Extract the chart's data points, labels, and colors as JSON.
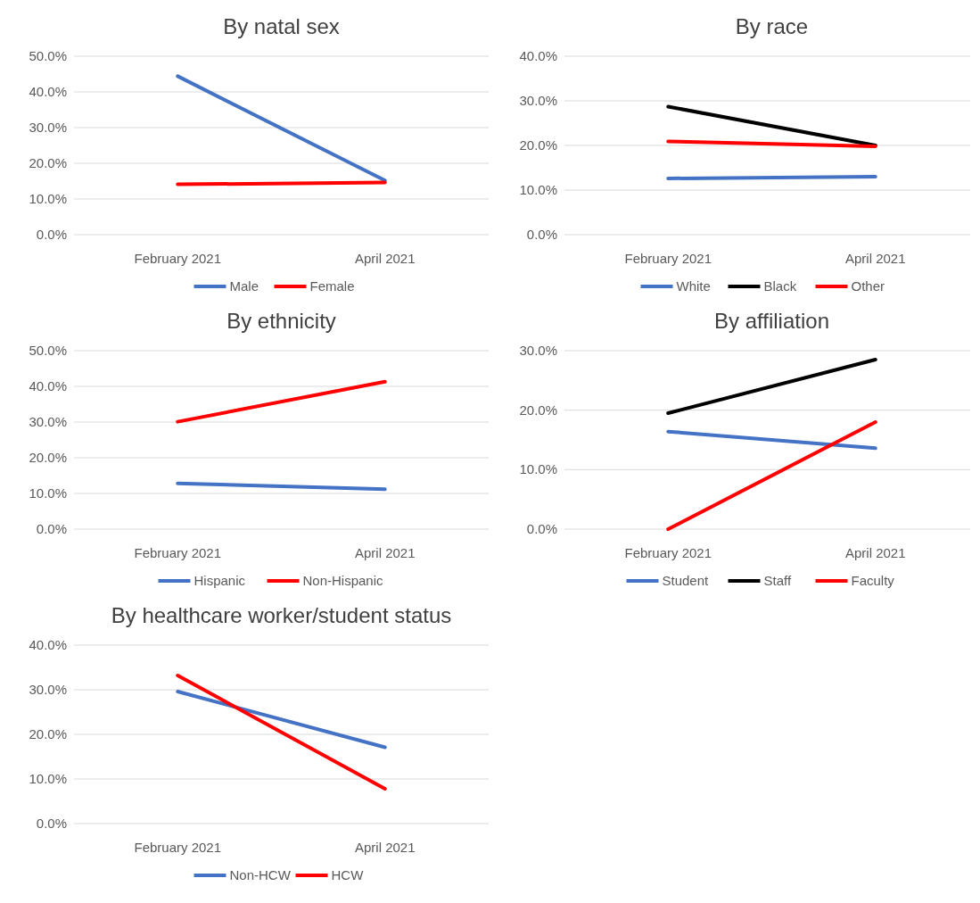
{
  "chart_data": [
    {
      "type": "line",
      "title": "By natal sex",
      "categories": [
        "February 2021",
        "April 2021"
      ],
      "ylim": [
        0,
        50
      ],
      "yticks": [
        {
          "value": 0,
          "label": "0.0%"
        },
        {
          "value": 10,
          "label": "10.0%"
        },
        {
          "value": 20,
          "label": "20.0%"
        },
        {
          "value": 30,
          "label": "30.0%"
        },
        {
          "value": 40,
          "label": "40.0%"
        },
        {
          "value": 50,
          "label": "50.0%"
        }
      ],
      "grid": "y",
      "legend": "bottom",
      "series": [
        {
          "name": "Male",
          "color": "#4472c4",
          "values": [
            44.4,
            15.2
          ]
        },
        {
          "name": "Female",
          "color": "#ff0000",
          "values": [
            14.1,
            14.6
          ]
        }
      ]
    },
    {
      "type": "line",
      "title": "By race",
      "categories": [
        "February 2021",
        "April 2021"
      ],
      "ylim": [
        0,
        40
      ],
      "yticks": [
        {
          "value": 0,
          "label": "0.0%"
        },
        {
          "value": 10,
          "label": "10.0%"
        },
        {
          "value": 20,
          "label": "20.0%"
        },
        {
          "value": 30,
          "label": "30.0%"
        },
        {
          "value": 40,
          "label": "40.0%"
        }
      ],
      "grid": "y",
      "legend": "bottom",
      "series": [
        {
          "name": "White",
          "color": "#4472c4",
          "values": [
            12.6,
            13
          ]
        },
        {
          "name": "Black",
          "color": "#000000",
          "values": [
            28.7,
            20
          ]
        },
        {
          "name": "Other",
          "color": "#ff0000",
          "values": [
            20.9,
            19.8
          ]
        }
      ]
    },
    {
      "type": "line",
      "title": "By ethnicity",
      "categories": [
        "February 2021",
        "April 2021"
      ],
      "ylim": [
        0,
        50
      ],
      "yticks": [
        {
          "value": 0,
          "label": "0.0%"
        },
        {
          "value": 10,
          "label": "10.0%"
        },
        {
          "value": 20,
          "label": "20.0%"
        },
        {
          "value": 30,
          "label": "30.0%"
        },
        {
          "value": 40,
          "label": "40.0%"
        },
        {
          "value": 50,
          "label": "50.0%"
        }
      ],
      "grid": "y",
      "legend": "bottom",
      "series": [
        {
          "name": "Hispanic",
          "color": "#4472c4",
          "values": [
            12.8,
            11.2
          ]
        },
        {
          "name": "Non-Hispanic",
          "color": "#ff0000",
          "values": [
            30.1,
            41.3
          ]
        }
      ]
    },
    {
      "type": "line",
      "title": "By affiliation",
      "categories": [
        "February 2021",
        "April 2021"
      ],
      "ylim": [
        0,
        30
      ],
      "yticks": [
        {
          "value": 0,
          "label": "0.0%"
        },
        {
          "value": 10,
          "label": "10.0%"
        },
        {
          "value": 20,
          "label": "20.0%"
        },
        {
          "value": 30,
          "label": "30.0%"
        }
      ],
      "grid": "y",
      "legend": "bottom",
      "series": [
        {
          "name": "Student",
          "color": "#4472c4",
          "values": [
            16.4,
            13.6
          ]
        },
        {
          "name": "Staff",
          "color": "#000000",
          "values": [
            19.5,
            28.5
          ]
        },
        {
          "name": "Faculty",
          "color": "#ff0000",
          "values": [
            0,
            18
          ]
        }
      ]
    },
    {
      "type": "line",
      "title": "By healthcare worker/student status",
      "categories": [
        "February 2021",
        "April 2021"
      ],
      "ylim": [
        0,
        40
      ],
      "yticks": [
        {
          "value": 0,
          "label": "0.0%"
        },
        {
          "value": 10,
          "label": "10.0%"
        },
        {
          "value": 20,
          "label": "20.0%"
        },
        {
          "value": 30,
          "label": "30.0%"
        },
        {
          "value": 40,
          "label": "40.0%"
        }
      ],
      "grid": "y",
      "legend": "bottom",
      "series": [
        {
          "name": "Non-HCW",
          "color": "#4472c4",
          "values": [
            29.6,
            17.1
          ]
        },
        {
          "name": "HCW",
          "color": "#ff0000",
          "values": [
            33.2,
            7.8
          ]
        }
      ]
    }
  ]
}
